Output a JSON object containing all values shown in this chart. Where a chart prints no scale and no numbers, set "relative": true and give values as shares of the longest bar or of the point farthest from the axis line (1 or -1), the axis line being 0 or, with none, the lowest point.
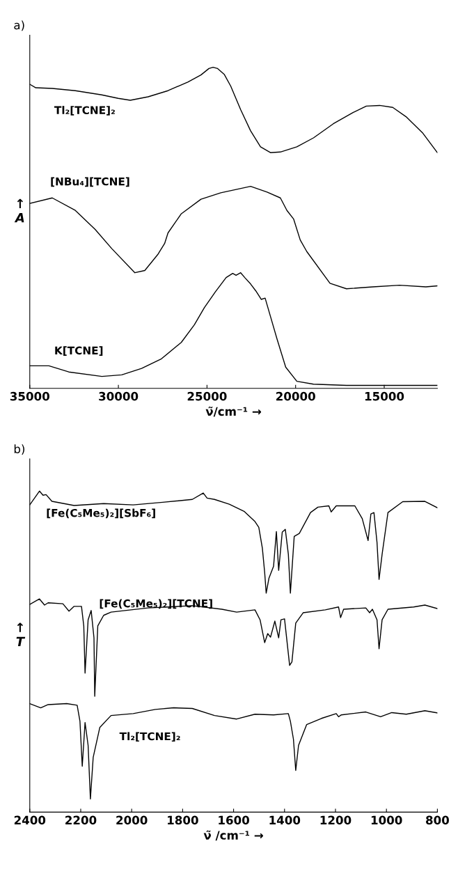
{
  "chart_data": [
    {
      "type": "line",
      "relative": true,
      "title": "a)",
      "xlabel": "ν̃/cm⁻¹ →",
      "ylabel": "↑\nA",
      "xlim": [
        35000,
        12000
      ],
      "xticks": [
        35000,
        30000,
        25000,
        20000,
        15000
      ],
      "series": [
        {
          "name": "Tl₂[TCNE]₂",
          "color": "#000000",
          "x": [
            35000,
            34660,
            33730,
            32430,
            30940,
            30010,
            29330,
            28320,
            27200,
            26080,
            25340,
            24890,
            24660,
            24400,
            24030,
            23660,
            23100,
            22540,
            21980,
            21420,
            20860,
            19930,
            18990,
            17870,
            16760,
            16010,
            15260,
            14520,
            13770,
            12840,
            12000
          ],
          "values": [
            0.947,
            0.936,
            0.934,
            0.927,
            0.914,
            0.903,
            0.897,
            0.908,
            0.927,
            0.954,
            0.976,
            0.996,
            1.0,
            0.996,
            0.978,
            0.941,
            0.868,
            0.802,
            0.752,
            0.734,
            0.736,
            0.752,
            0.78,
            0.824,
            0.859,
            0.879,
            0.881,
            0.875,
            0.846,
            0.796,
            0.734
          ]
        },
        {
          "name": "[NBu₄][TCNE]",
          "color": "#000000",
          "x": [
            35000,
            33730,
            32430,
            31310,
            30370,
            29070,
            28510,
            27760,
            27390,
            27200,
            26460,
            25340,
            24220,
            22540,
            21610,
            20860,
            20490,
            20110,
            19740,
            19370,
            18060,
            17130,
            15640,
            14140,
            12650,
            12000
          ],
          "values": [
            0.576,
            0.593,
            0.554,
            0.495,
            0.435,
            0.36,
            0.367,
            0.418,
            0.451,
            0.484,
            0.543,
            0.589,
            0.609,
            0.629,
            0.611,
            0.593,
            0.554,
            0.527,
            0.462,
            0.426,
            0.327,
            0.31,
            0.316,
            0.321,
            0.316,
            0.319
          ]
        },
        {
          "name": "K[TCNE]",
          "color": "#000000",
          "x": [
            35000,
            33920,
            32800,
            30930,
            29810,
            28690,
            27570,
            26450,
            25710,
            25150,
            24520,
            23920,
            23550,
            23360,
            23100,
            22870,
            22540,
            22240,
            21940,
            21720,
            21420,
            21050,
            20560,
            19930,
            18990,
            17130,
            14140,
            12000
          ],
          "values": [
            0.07,
            0.07,
            0.051,
            0.037,
            0.042,
            0.062,
            0.092,
            0.143,
            0.198,
            0.251,
            0.301,
            0.345,
            0.358,
            0.352,
            0.36,
            0.345,
            0.325,
            0.303,
            0.277,
            0.281,
            0.224,
            0.154,
            0.066,
            0.022,
            0.013,
            0.009,
            0.009,
            0.009
          ]
        }
      ]
    },
    {
      "type": "line",
      "relative": true,
      "title": "b)",
      "xlabel": "ν̃ /cm⁻¹ →",
      "ylabel": "↑\nT",
      "xlim": [
        2400,
        800
      ],
      "xticks": [
        2400,
        2200,
        2000,
        1800,
        1600,
        1400,
        1200,
        1000,
        800
      ],
      "series": [
        {
          "name": "[Fe(C₅Me₅)₂][SbF₆]",
          "color": "#000000",
          "x": [
            2400,
            2362,
            2348,
            2336,
            2313,
            2226,
            2110,
            1994,
            1878,
            1762,
            1719,
            1704,
            1675,
            1617,
            1559,
            1516,
            1501,
            1487,
            1478,
            1472,
            1461,
            1443,
            1432,
            1423,
            1409,
            1397,
            1385,
            1377,
            1362,
            1342,
            1298,
            1269,
            1226,
            1217,
            1197,
            1124,
            1095,
            1072,
            1061,
            1049,
            1037,
            1029,
            1017,
            994,
            936,
            849,
            800
          ],
          "values": [
            0.957,
            1.0,
            0.987,
            0.989,
            0.968,
            0.955,
            0.961,
            0.957,
            0.965,
            0.974,
            0.994,
            0.978,
            0.974,
            0.959,
            0.937,
            0.905,
            0.887,
            0.822,
            0.747,
            0.682,
            0.729,
            0.766,
            0.874,
            0.753,
            0.872,
            0.881,
            0.803,
            0.682,
            0.859,
            0.868,
            0.933,
            0.95,
            0.954,
            0.935,
            0.954,
            0.954,
            0.914,
            0.846,
            0.929,
            0.933,
            0.84,
            0.725,
            0.803,
            0.933,
            0.967,
            0.968,
            0.948
          ]
        },
        {
          "name": "[Fe(C₅Me₅)₂][TCNE]",
          "color": "#000000",
          "x": [
            2400,
            2362,
            2342,
            2328,
            2270,
            2246,
            2226,
            2197,
            2188,
            2183,
            2171,
            2159,
            2148,
            2145,
            2133,
            2110,
            2081,
            1936,
            1762,
            1646,
            1588,
            1516,
            1496,
            1478,
            1466,
            1455,
            1438,
            1423,
            1414,
            1400,
            1380,
            1371,
            1356,
            1327,
            1240,
            1188,
            1180,
            1168,
            1081,
            1066,
            1055,
            1037,
            1029,
            1017,
            994,
            893,
            849,
            800
          ],
          "values": [
            0.647,
            0.664,
            0.645,
            0.652,
            0.649,
            0.626,
            0.641,
            0.641,
            0.58,
            0.433,
            0.599,
            0.628,
            0.543,
            0.361,
            0.58,
            0.613,
            0.623,
            0.636,
            0.643,
            0.632,
            0.623,
            0.63,
            0.599,
            0.528,
            0.556,
            0.545,
            0.595,
            0.543,
            0.599,
            0.602,
            0.457,
            0.468,
            0.589,
            0.621,
            0.63,
            0.639,
            0.606,
            0.632,
            0.636,
            0.621,
            0.632,
            0.599,
            0.509,
            0.599,
            0.632,
            0.639,
            0.645,
            0.634
          ]
        },
        {
          "name": "Tl₂[TCNE]₂",
          "color": "#000000",
          "x": [
            2400,
            2357,
            2328,
            2255,
            2214,
            2203,
            2194,
            2183,
            2171,
            2162,
            2151,
            2125,
            2081,
            1994,
            1907,
            1835,
            1762,
            1675,
            1588,
            1516,
            1443,
            1385,
            1377,
            1365,
            1356,
            1345,
            1313,
            1255,
            1197,
            1188,
            1177,
            1081,
            1023,
            979,
            922,
            849,
            800
          ],
          "values": [
            0.338,
            0.325,
            0.335,
            0.338,
            0.333,
            0.283,
            0.143,
            0.279,
            0.208,
            0.041,
            0.171,
            0.264,
            0.301,
            0.307,
            0.32,
            0.325,
            0.323,
            0.301,
            0.29,
            0.305,
            0.303,
            0.307,
            0.283,
            0.227,
            0.13,
            0.208,
            0.273,
            0.292,
            0.307,
            0.297,
            0.303,
            0.312,
            0.297,
            0.31,
            0.305,
            0.316,
            0.309
          ]
        }
      ]
    }
  ]
}
